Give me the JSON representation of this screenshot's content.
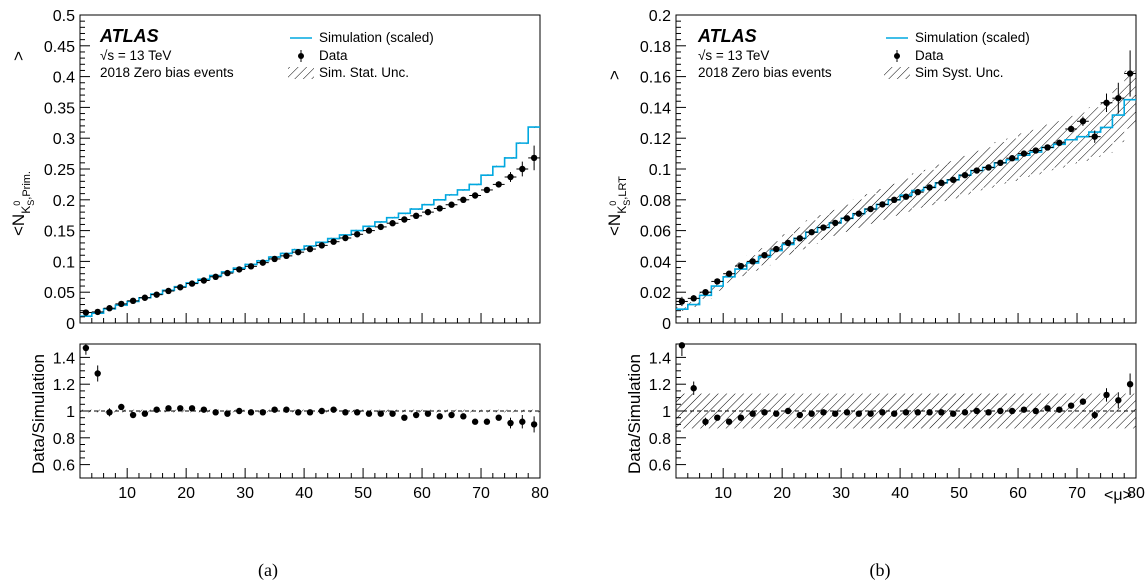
{
  "figures": [
    {
      "id": "a",
      "sublabel": "(a)",
      "ylabel_top": "<N",
      "ylabel_sub": "K",
      "ylabel_sub_sup": "0",
      "ylabel_sub_s": "S",
      "ylabel_sub_tag": ",Prim.",
      "ylabel_close": ">",
      "atlas": "ATLAS",
      "info": [
        "√s = 13 TeV",
        "2018 Zero bias events"
      ],
      "legend": [
        "Simulation (scaled)",
        "Data",
        "Sim. Stat. Unc."
      ],
      "ratio_ylabel": "Data/Simulation",
      "xlabel": "",
      "top_yticks": [
        "0",
        "0.05",
        "0.1",
        "0.15",
        "0.2",
        "0.25",
        "0.3",
        "0.35",
        "0.4",
        "0.45",
        "0.5"
      ],
      "ratio_yticks": [
        "0.6",
        "0.8",
        "1",
        "1.2",
        "1.4"
      ],
      "xticks": [
        "10",
        "20",
        "30",
        "40",
        "50",
        "60",
        "70",
        "80"
      ],
      "colors": {
        "simulation": "#00a8e0",
        "data": "#000000"
      }
    },
    {
      "id": "b",
      "sublabel": "(b)",
      "ylabel_top": "<N",
      "ylabel_sub": "K",
      "ylabel_sub_sup": "0",
      "ylabel_sub_s": "S",
      "ylabel_sub_tag": ",LRT",
      "ylabel_close": ">",
      "atlas": "ATLAS",
      "info": [
        "√s = 13 TeV",
        "2018 Zero bias events"
      ],
      "legend": [
        "Simulation (scaled)",
        "Data",
        "Sim Syst. Unc."
      ],
      "ratio_ylabel": "Data/Simulation",
      "xlabel": "<μ>",
      "top_yticks": [
        "0",
        "0.02",
        "0.04",
        "0.06",
        "0.08",
        "0.1",
        "0.12",
        "0.14",
        "0.16",
        "0.18",
        "0.2"
      ],
      "ratio_yticks": [
        "0.6",
        "0.8",
        "1",
        "1.2",
        "1.4"
      ],
      "xticks": [
        "10",
        "20",
        "30",
        "40",
        "50",
        "60",
        "70",
        "80"
      ],
      "colors": {
        "simulation": "#00a8e0",
        "data": "#000000"
      }
    }
  ],
  "chart_data": [
    {
      "type": "scatter",
      "panel": "a-top",
      "xlim": [
        2,
        80
      ],
      "ylim": [
        0,
        0.5
      ],
      "grid": false,
      "legend_position": "top-right",
      "series": [
        {
          "name": "Simulation (scaled)",
          "kind": "step",
          "edges": [
            2,
            4,
            6,
            8,
            10,
            12,
            14,
            16,
            18,
            20,
            22,
            24,
            26,
            28,
            30,
            32,
            34,
            36,
            38,
            40,
            42,
            44,
            46,
            48,
            50,
            52,
            54,
            56,
            58,
            60,
            62,
            64,
            66,
            68,
            70,
            72,
            74,
            76,
            78,
            80
          ],
          "values": [
            0.011,
            0.016,
            0.023,
            0.029,
            0.035,
            0.041,
            0.047,
            0.053,
            0.059,
            0.065,
            0.071,
            0.077,
            0.083,
            0.089,
            0.095,
            0.101,
            0.107,
            0.113,
            0.119,
            0.125,
            0.131,
            0.137,
            0.143,
            0.15,
            0.157,
            0.164,
            0.171,
            0.178,
            0.185,
            0.192,
            0.2,
            0.208,
            0.216,
            0.225,
            0.24,
            0.254,
            0.268,
            0.292,
            0.318
          ]
        },
        {
          "name": "Data",
          "kind": "points",
          "x": [
            3,
            5,
            7,
            9,
            11,
            13,
            15,
            17,
            19,
            21,
            23,
            25,
            27,
            29,
            31,
            33,
            35,
            37,
            39,
            41,
            43,
            45,
            47,
            49,
            51,
            53,
            55,
            57,
            59,
            61,
            63,
            65,
            67,
            69,
            71,
            73,
            75,
            77,
            79
          ],
          "y": [
            0.017,
            0.018,
            0.024,
            0.031,
            0.036,
            0.041,
            0.046,
            0.052,
            0.058,
            0.064,
            0.069,
            0.075,
            0.081,
            0.087,
            0.092,
            0.098,
            0.104,
            0.109,
            0.115,
            0.12,
            0.126,
            0.132,
            0.138,
            0.144,
            0.15,
            0.156,
            0.162,
            0.168,
            0.174,
            0.18,
            0.186,
            0.192,
            0.2,
            0.207,
            0.216,
            0.225,
            0.237,
            0.25,
            0.268
          ],
          "yerr": [
            0.002,
            0.002,
            0.001,
            0.001,
            0.001,
            0.001,
            0.001,
            0.001,
            0.001,
            0.001,
            0.001,
            0.001,
            0.001,
            0.001,
            0.001,
            0.001,
            0.001,
            0.001,
            0.001,
            0.001,
            0.001,
            0.001,
            0.001,
            0.001,
            0.001,
            0.001,
            0.001,
            0.001,
            0.001,
            0.001,
            0.001,
            0.001,
            0.002,
            0.002,
            0.003,
            0.005,
            0.008,
            0.012,
            0.02
          ]
        }
      ]
    },
    {
      "type": "scatter",
      "panel": "a-ratio",
      "xlim": [
        2,
        80
      ],
      "ylim": [
        0.5,
        1.5
      ],
      "reference_line": 1,
      "series": [
        {
          "name": "Data/Simulation",
          "x": [
            3,
            5,
            7,
            9,
            11,
            13,
            15,
            17,
            19,
            21,
            23,
            25,
            27,
            29,
            31,
            33,
            35,
            37,
            39,
            41,
            43,
            45,
            47,
            49,
            51,
            53,
            55,
            57,
            59,
            61,
            63,
            65,
            67,
            69,
            71,
            73,
            75,
            77,
            79
          ],
          "y": [
            1.47,
            1.28,
            0.99,
            1.03,
            0.97,
            0.98,
            1.01,
            1.02,
            1.02,
            1.02,
            1.01,
            0.99,
            0.98,
            1.0,
            0.99,
            0.99,
            1.01,
            1.01,
            0.99,
            0.99,
            1.0,
            1.01,
            0.99,
            0.99,
            0.98,
            0.98,
            0.98,
            0.95,
            0.97,
            0.98,
            0.96,
            0.97,
            0.96,
            0.92,
            0.92,
            0.95,
            0.91,
            0.92,
            0.9
          ],
          "yerr": [
            0.05,
            0.06,
            0.03,
            0.02,
            0.02,
            0.02,
            0.01,
            0.01,
            0.01,
            0.01,
            0.01,
            0.01,
            0.01,
            0.01,
            0.01,
            0.01,
            0.01,
            0.01,
            0.01,
            0.01,
            0.01,
            0.01,
            0.01,
            0.01,
            0.01,
            0.01,
            0.01,
            0.01,
            0.01,
            0.01,
            0.01,
            0.01,
            0.01,
            0.01,
            0.02,
            0.02,
            0.04,
            0.05,
            0.06
          ]
        }
      ]
    },
    {
      "type": "scatter",
      "panel": "b-top",
      "xlim": [
        2,
        80
      ],
      "ylim": [
        0,
        0.2
      ],
      "grid": false,
      "legend_position": "top-right",
      "series": [
        {
          "name": "Simulation (scaled)",
          "kind": "step",
          "edges": [
            2,
            4,
            6,
            8,
            10,
            12,
            14,
            16,
            18,
            20,
            22,
            24,
            26,
            28,
            30,
            32,
            34,
            36,
            38,
            40,
            42,
            44,
            46,
            48,
            50,
            52,
            54,
            56,
            58,
            60,
            62,
            64,
            66,
            68,
            70,
            72,
            74,
            76,
            78,
            80
          ],
          "values": [
            0.009,
            0.012,
            0.018,
            0.024,
            0.03,
            0.035,
            0.039,
            0.043,
            0.047,
            0.051,
            0.055,
            0.059,
            0.062,
            0.065,
            0.068,
            0.071,
            0.074,
            0.077,
            0.08,
            0.083,
            0.086,
            0.088,
            0.091,
            0.093,
            0.096,
            0.099,
            0.101,
            0.104,
            0.106,
            0.109,
            0.111,
            0.114,
            0.116,
            0.119,
            0.121,
            0.124,
            0.127,
            0.135,
            0.145
          ]
        },
        {
          "name": "Data",
          "kind": "points",
          "x": [
            3,
            5,
            7,
            9,
            11,
            13,
            15,
            17,
            19,
            21,
            23,
            25,
            27,
            29,
            31,
            33,
            35,
            37,
            39,
            41,
            43,
            45,
            47,
            49,
            51,
            53,
            55,
            57,
            59,
            61,
            63,
            65,
            67,
            69,
            71,
            73,
            75,
            77,
            79
          ],
          "y": [
            0.014,
            0.016,
            0.02,
            0.027,
            0.032,
            0.037,
            0.04,
            0.044,
            0.048,
            0.052,
            0.055,
            0.059,
            0.062,
            0.065,
            0.068,
            0.071,
            0.074,
            0.077,
            0.08,
            0.082,
            0.085,
            0.088,
            0.091,
            0.093,
            0.096,
            0.099,
            0.101,
            0.104,
            0.107,
            0.11,
            0.112,
            0.114,
            0.117,
            0.126,
            0.131,
            0.121,
            0.143,
            0.146,
            0.162
          ],
          "yerr": [
            0.003,
            0.002,
            0.001,
            0.001,
            0.001,
            0.001,
            0.001,
            0.001,
            0.001,
            0.001,
            0.001,
            0.001,
            0.001,
            0.001,
            0.001,
            0.001,
            0.001,
            0.001,
            0.001,
            0.001,
            0.001,
            0.001,
            0.001,
            0.001,
            0.001,
            0.001,
            0.001,
            0.001,
            0.001,
            0.001,
            0.001,
            0.001,
            0.002,
            0.002,
            0.003,
            0.004,
            0.006,
            0.01,
            0.015
          ]
        }
      ]
    },
    {
      "type": "scatter",
      "panel": "b-ratio",
      "xlim": [
        2,
        80
      ],
      "ylim": [
        0.5,
        1.5
      ],
      "reference_line": 1,
      "band": [
        0.87,
        1.13
      ],
      "series": [
        {
          "name": "Data/Simulation",
          "x": [
            3,
            5,
            7,
            9,
            11,
            13,
            15,
            17,
            19,
            21,
            23,
            25,
            27,
            29,
            31,
            33,
            35,
            37,
            39,
            41,
            43,
            45,
            47,
            49,
            51,
            53,
            55,
            57,
            59,
            61,
            63,
            65,
            67,
            69,
            71,
            73,
            75,
            77,
            79
          ],
          "y": [
            1.5,
            1.17,
            0.92,
            0.95,
            0.92,
            0.95,
            0.98,
            0.99,
            0.98,
            1.0,
            0.97,
            0.98,
            0.99,
            0.98,
            0.99,
            0.98,
            0.98,
            0.99,
            0.98,
            0.99,
            0.99,
            0.99,
            0.99,
            0.98,
            0.99,
            1.0,
            0.99,
            1.0,
            1.0,
            1.01,
            1.0,
            1.02,
            1.01,
            1.04,
            1.07,
            0.97,
            1.12,
            1.08,
            1.2
          ],
          "yerr": [
            0.08,
            0.05,
            0.03,
            0.02,
            0.02,
            0.02,
            0.01,
            0.01,
            0.01,
            0.01,
            0.01,
            0.01,
            0.01,
            0.01,
            0.01,
            0.01,
            0.01,
            0.01,
            0.01,
            0.01,
            0.01,
            0.01,
            0.01,
            0.01,
            0.01,
            0.01,
            0.01,
            0.01,
            0.01,
            0.01,
            0.01,
            0.01,
            0.01,
            0.02,
            0.02,
            0.03,
            0.05,
            0.06,
            0.08
          ]
        }
      ]
    }
  ]
}
